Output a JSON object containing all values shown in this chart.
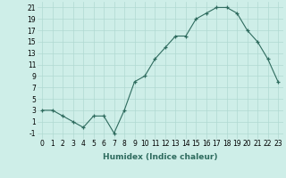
{
  "x": [
    0,
    1,
    2,
    3,
    4,
    5,
    6,
    7,
    8,
    9,
    10,
    11,
    12,
    13,
    14,
    15,
    16,
    17,
    18,
    19,
    20,
    21,
    22,
    23
  ],
  "y": [
    3,
    3,
    2,
    1,
    0,
    2,
    2,
    -1,
    3,
    8,
    9,
    12,
    14,
    16,
    16,
    19,
    20,
    21,
    21,
    20,
    17,
    15,
    12,
    8
  ],
  "title": "",
  "xlabel": "Humidex (Indice chaleur)",
  "ylabel": "",
  "xlim": [
    -0.5,
    23.5
  ],
  "ylim": [
    -2,
    22
  ],
  "yticks": [
    -1,
    1,
    3,
    5,
    7,
    9,
    11,
    13,
    15,
    17,
    19,
    21
  ],
  "xticks": [
    0,
    1,
    2,
    3,
    4,
    5,
    6,
    7,
    8,
    9,
    10,
    11,
    12,
    13,
    14,
    15,
    16,
    17,
    18,
    19,
    20,
    21,
    22,
    23
  ],
  "line_color": "#2e6b5e",
  "marker": "+",
  "bg_color": "#ceeee8",
  "grid_color": "#b0d9d2",
  "label_fontsize": 6.5,
  "tick_fontsize": 5.5
}
